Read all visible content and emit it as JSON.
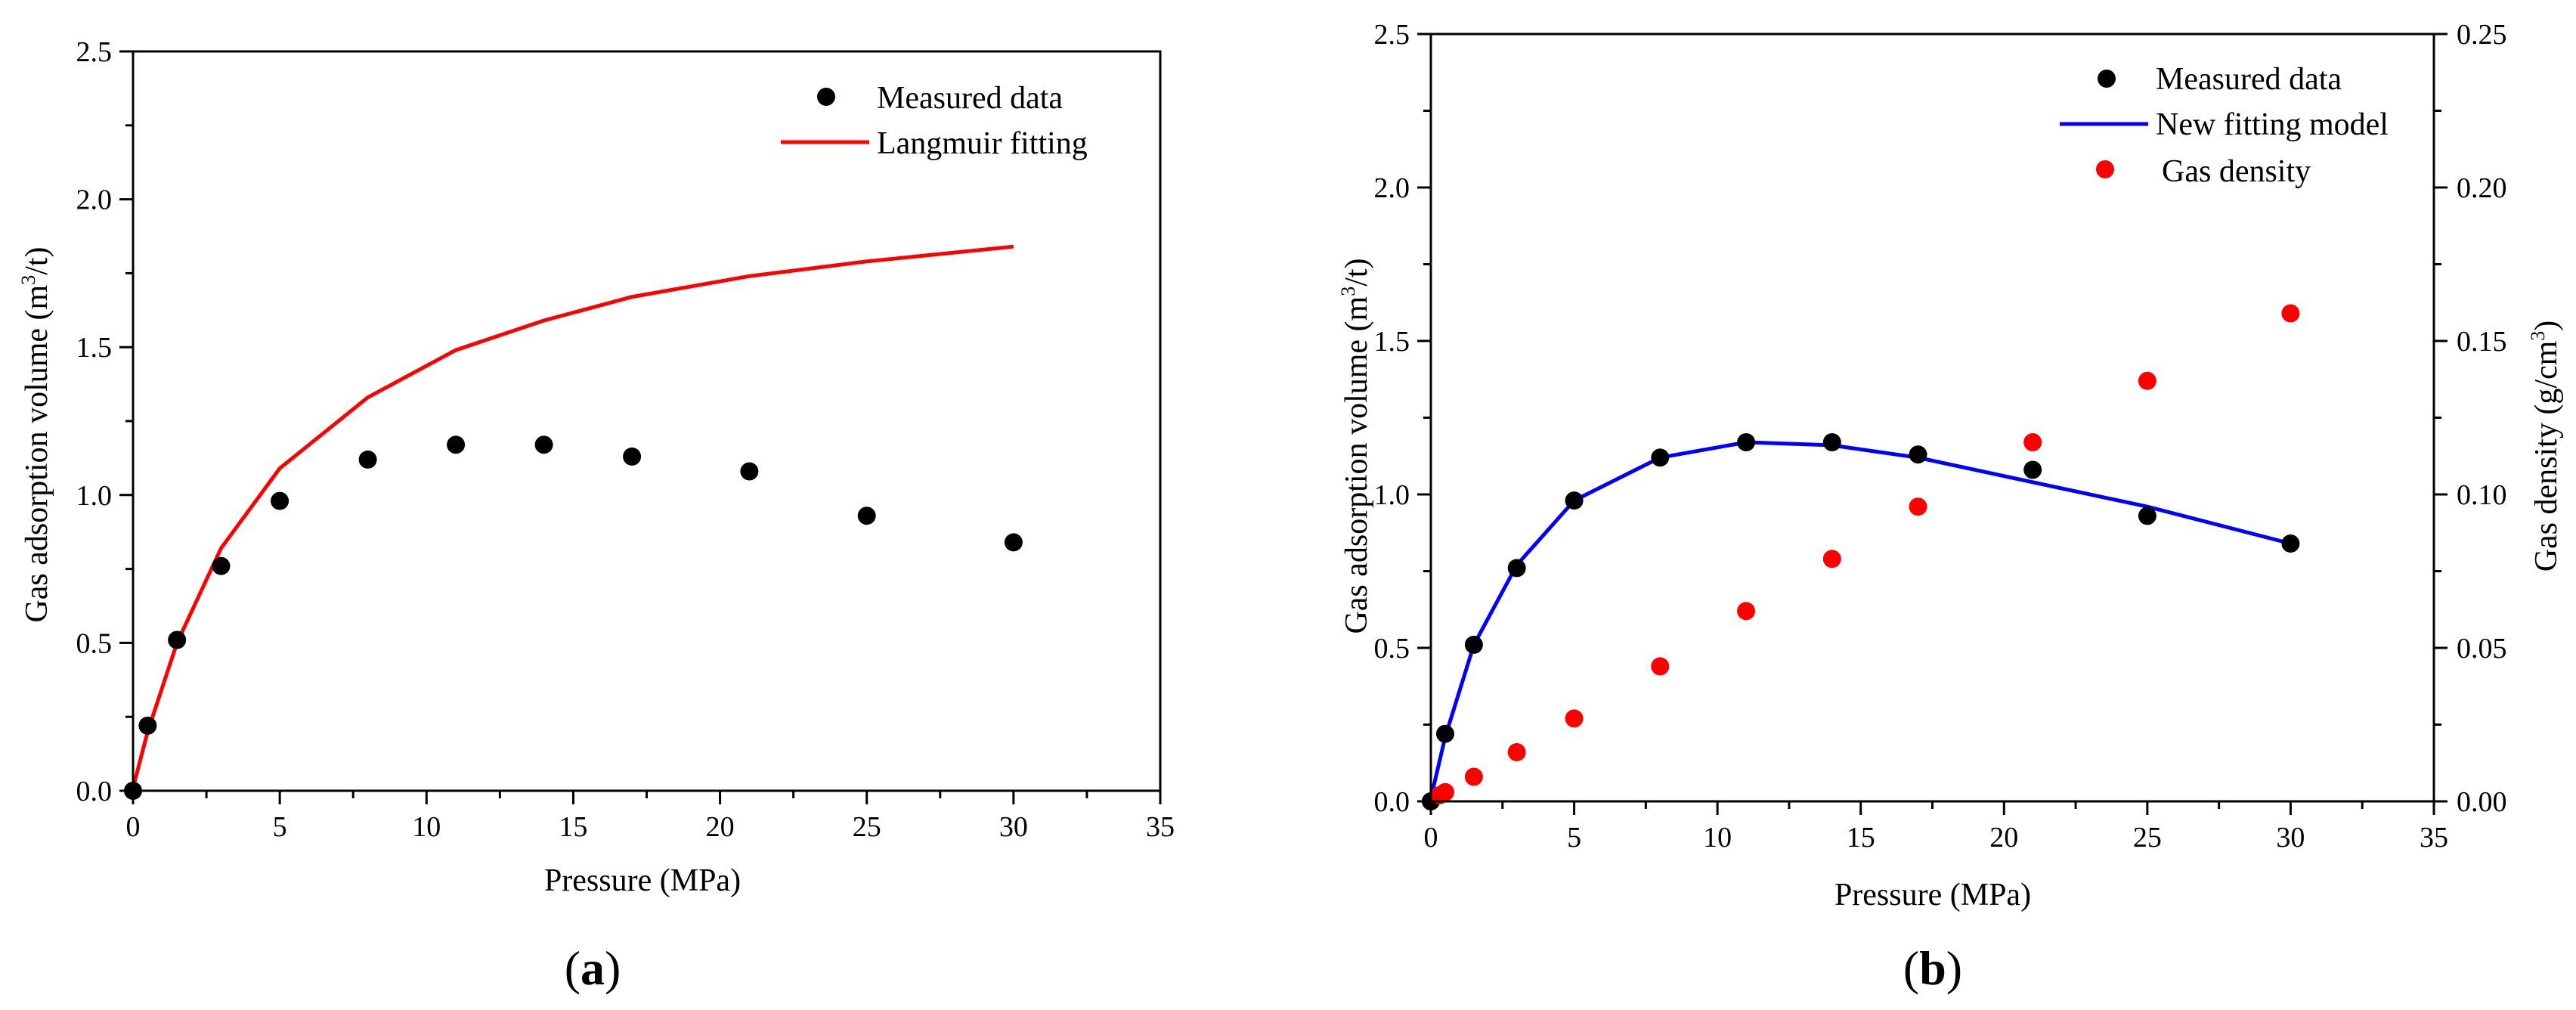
{
  "panel_labels": [
    {
      "open": "(",
      "letter": "a",
      "close": ")"
    },
    {
      "open": "(",
      "letter": "b",
      "close": ")"
    }
  ],
  "colors": {
    "measured": "#000000",
    "langmuir": "#ff0000",
    "new_model": "#0000ff",
    "gas_density": "#ff0000"
  },
  "chart_data": [
    {
      "type": "scatter",
      "panel": "a",
      "xlabel": "Pressure (MPa)",
      "ylabel": {
        "pre": "Gas adsorption volume (m",
        "sup": "3",
        "post": "/t)"
      },
      "xlim": [
        0,
        35
      ],
      "ylim": [
        0,
        2.5
      ],
      "xticks": [
        "0",
        "5",
        "10",
        "15",
        "20",
        "25",
        "30",
        "35"
      ],
      "yticks": [
        "0.0",
        "0.5",
        "1.0",
        "1.5",
        "2.0",
        "2.5"
      ],
      "legend_position": "top-right",
      "series": [
        {
          "name": "Measured data",
          "kind": "points",
          "color": "#000000",
          "x": [
            0,
            0.5,
            1.5,
            3,
            5,
            8,
            11,
            14,
            17,
            21,
            25,
            30
          ],
          "y": [
            0,
            0.22,
            0.51,
            0.76,
            0.98,
            1.12,
            1.17,
            1.17,
            1.13,
            1.08,
            0.93,
            0.84
          ]
        },
        {
          "name": "Langmuir fitting",
          "kind": "line",
          "color": "#ff0000",
          "x": [
            0,
            0.5,
            1.5,
            3,
            5,
            8,
            11,
            14,
            17,
            21,
            25,
            30
          ],
          "y": [
            0.01,
            0.2,
            0.5,
            0.82,
            1.09,
            1.33,
            1.49,
            1.59,
            1.67,
            1.74,
            1.79,
            1.84
          ]
        }
      ]
    },
    {
      "type": "scatter",
      "panel": "b",
      "xlabel": "Pressure (MPa)",
      "ylabel": {
        "pre": "Gas adsorption volume (m",
        "sup": "3",
        "post": "/t)"
      },
      "y2label": {
        "pre": "Gas density (g/cm",
        "sup": "3",
        "post": ")"
      },
      "xlim": [
        0,
        35
      ],
      "ylim": [
        0,
        2.5
      ],
      "y2lim": [
        0,
        0.25
      ],
      "xticks": [
        "0",
        "5",
        "10",
        "15",
        "20",
        "25",
        "30",
        "35"
      ],
      "yticks": [
        "0.0",
        "0.5",
        "1.0",
        "1.5",
        "2.0",
        "2.5"
      ],
      "y2ticks": [
        "0.00",
        "0.05",
        "0.10",
        "0.15",
        "0.20",
        "0.25"
      ],
      "legend_position": "top-right",
      "series": [
        {
          "name": "Measured data",
          "kind": "points",
          "axis": "left",
          "color": "#000000",
          "x": [
            0,
            0.5,
            1.5,
            3,
            5,
            8,
            11,
            14,
            17,
            21,
            25,
            30
          ],
          "y": [
            0,
            0.22,
            0.51,
            0.76,
            0.98,
            1.12,
            1.17,
            1.17,
            1.13,
            1.08,
            0.93,
            0.84
          ]
        },
        {
          "name": "New fitting model",
          "kind": "line",
          "axis": "left",
          "color": "#0000ff",
          "x": [
            0,
            0.5,
            1.5,
            3,
            5,
            8,
            11,
            14,
            17,
            21,
            25,
            30
          ],
          "y": [
            0.01,
            0.21,
            0.51,
            0.77,
            0.98,
            1.12,
            1.17,
            1.16,
            1.12,
            1.04,
            0.96,
            0.84
          ]
        },
        {
          "name": "Gas density",
          "kind": "points",
          "axis": "right",
          "color": "#ff0000",
          "x": [
            0.3,
            0.5,
            1.5,
            3,
            5,
            8,
            11,
            14,
            17,
            21,
            25,
            30
          ],
          "y": [
            0.002,
            0.003,
            0.008,
            0.016,
            0.027,
            0.044,
            0.062,
            0.079,
            0.096,
            0.117,
            0.137,
            0.159
          ]
        }
      ]
    }
  ]
}
